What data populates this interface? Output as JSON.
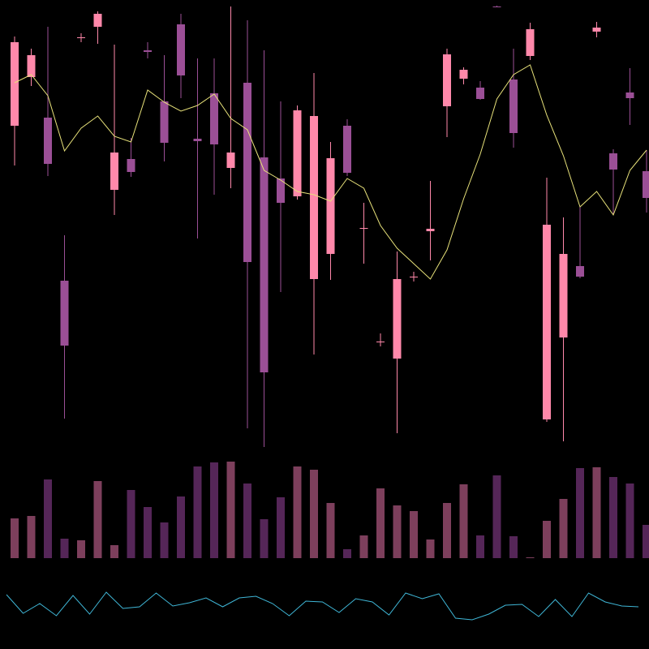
{
  "chart_data": [
    {
      "type": "candlestick",
      "open": [
        445,
        505,
        455,
        254,
        553,
        567,
        366,
        404,
        538,
        475,
        570,
        429,
        485,
        393,
        498,
        406,
        380,
        358,
        256,
        287,
        445,
        318,
        178,
        158,
        258,
        315,
        469,
        503,
        492,
        592,
        502,
        531,
        83,
        184,
        272,
        561,
        411,
        486,
        389
      ],
      "high": [
        555,
        540,
        567,
        310,
        559,
        586,
        545,
        430,
        548,
        532,
        583,
        528,
        528,
        592,
        575,
        538,
        475,
        470,
        510,
        425,
        453,
        350,
        189,
        290,
        265,
        377,
        540,
        517,
        500,
        593,
        540,
        572,
        381,
        332,
        345,
        573,
        416,
        516,
        415
      ],
      "low": [
        396,
        494,
        383,
        84,
        548,
        546,
        335,
        382,
        528,
        401,
        479,
        306,
        360,
        368,
        72,
        49,
        240,
        354,
        163,
        255,
        383,
        275,
        173,
        66,
        253,
        279,
        431,
        496,
        477,
        591,
        418,
        526,
        80,
        56,
        257,
        554,
        335,
        446,
        338
      ],
      "close": [
        548,
        532,
        398,
        174,
        554,
        583,
        412,
        388,
        536,
        424,
        507,
        426,
        422,
        412,
        277,
        141,
        350,
        464,
        457,
        405,
        387,
        319,
        179,
        256,
        259,
        318,
        533,
        514,
        478,
        591,
        436,
        564,
        323,
        287,
        259,
        566,
        391,
        479,
        356
      ],
      "up_color": "#ff88aa",
      "down_color": "#9b4f96",
      "ma": {
        "color": "#e8e27a",
        "values": [
          498,
          508,
          482,
          414,
          442,
          457,
          432,
          425,
          489,
          474,
          463,
          470,
          484,
          454,
          440,
          390,
          378,
          364,
          360,
          352,
          380,
          368,
          322,
          294,
          275,
          256,
          292,
          355,
          410,
          478,
          508,
          520,
          458,
          408,
          345,
          364,
          335,
          390,
          415
        ]
      },
      "ylim": [
        40,
        600
      ]
    },
    {
      "type": "bar",
      "values": [
        49,
        52,
        97,
        24,
        22,
        95,
        16,
        84,
        63,
        44,
        76,
        113,
        118,
        119,
        92,
        48,
        75,
        113,
        109,
        68,
        11,
        28,
        86,
        65,
        58,
        23,
        68,
        91,
        28,
        102,
        27,
        1,
        46,
        73,
        111,
        112,
        100,
        92,
        41
      ],
      "up_color": "#7d3f5c",
      "down_color": "#552658",
      "ylim": [
        0,
        130
      ]
    },
    {
      "type": "line",
      "values": [
        57,
        34,
        46,
        31,
        56,
        33,
        60,
        40,
        42,
        59,
        43,
        47,
        53,
        42,
        53,
        55,
        46,
        31,
        49,
        48,
        35,
        52,
        48,
        32,
        59,
        52,
        58,
        28,
        26,
        33,
        44,
        45,
        30,
        51,
        30,
        59,
        48,
        43,
        42
      ],
      "color": "#3fb6d6",
      "ylim": [
        0,
        80
      ]
    }
  ]
}
